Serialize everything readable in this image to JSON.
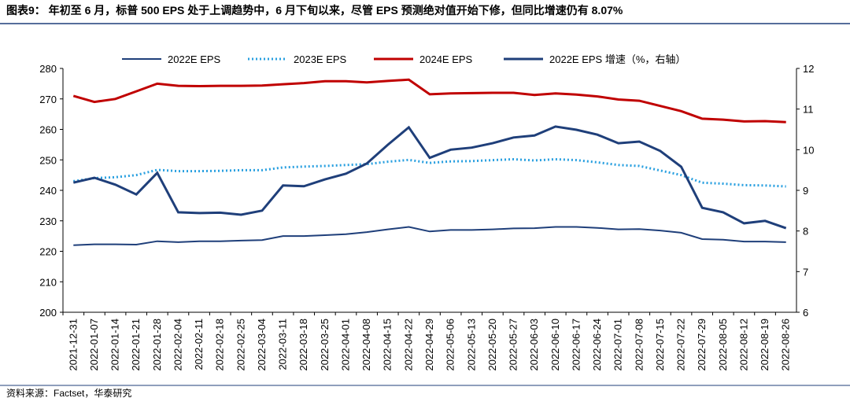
{
  "chart_data": {
    "type": "line",
    "title": "图表9：  年初至 6 月，标普 500 EPS 处于上调趋势中，6 月下旬以来，尽管 EPS 预测绝对值开始下修，但同比增速仍有 8.07%",
    "source": "资料来源：Factset，华泰研究",
    "categories": [
      "2021-12-31",
      "2022-01-07",
      "2022-01-14",
      "2022-01-21",
      "2022-01-28",
      "2022-02-04",
      "2022-02-11",
      "2022-02-18",
      "2022-02-25",
      "2022-03-04",
      "2022-03-11",
      "2022-03-18",
      "2022-03-25",
      "2022-04-01",
      "2022-04-08",
      "2022-04-15",
      "2022-04-22",
      "2022-04-29",
      "2022-05-06",
      "2022-05-13",
      "2022-05-20",
      "2022-05-27",
      "2022-06-03",
      "2022-06-10",
      "2022-06-17",
      "2022-06-24",
      "2022-07-01",
      "2022-07-08",
      "2022-07-15",
      "2022-07-22",
      "2022-07-29",
      "2022-08-05",
      "2022-08-12",
      "2022-08-19",
      "2022-08-26"
    ],
    "ylim": [
      200,
      280
    ],
    "yticks": [
      200,
      210,
      220,
      230,
      240,
      250,
      260,
      270,
      280
    ],
    "y2lim": [
      6,
      12
    ],
    "y2ticks": [
      6,
      7,
      8,
      9,
      10,
      11,
      12
    ],
    "grid": false,
    "series": [
      {
        "name": "2022E EPS",
        "color": "#1f3f7a",
        "line_style": "solid",
        "line_width": 2,
        "values": [
          222,
          222.3,
          222.3,
          222.2,
          223.3,
          223,
          223.3,
          223.3,
          223.5,
          223.7,
          225,
          225,
          225.3,
          225.6,
          226.3,
          227.2,
          228,
          226.5,
          227,
          227,
          227.2,
          227.5,
          227.6,
          228,
          228,
          227.7,
          227.2,
          227.3,
          226.8,
          226.1,
          224,
          223.8,
          223.2,
          223.2,
          223
        ]
      },
      {
        "name": "2023E EPS",
        "color": "#2aa0e0",
        "line_style": "dotted",
        "line_width": 3,
        "values": [
          243,
          244,
          244.3,
          245,
          246.7,
          246.3,
          246.3,
          246.4,
          246.6,
          246.6,
          247.5,
          247.8,
          248,
          248.3,
          248.6,
          249.4,
          250,
          249,
          249.5,
          249.6,
          249.9,
          250.2,
          249.8,
          250.2,
          249.9,
          249.2,
          248.3,
          248,
          246.5,
          245,
          242.5,
          242.2,
          241.7,
          241.6,
          241.3
        ]
      },
      {
        "name": "2024E EPS",
        "color": "#c00000",
        "line_style": "solid",
        "line_width": 3,
        "values": [
          271,
          269,
          270,
          272.5,
          275,
          274.3,
          274.2,
          274.3,
          274.3,
          274.4,
          274.8,
          275.2,
          275.8,
          275.8,
          275.4,
          275.9,
          276.3,
          271.5,
          271.8,
          271.9,
          272,
          272,
          271.3,
          271.8,
          271.4,
          270.8,
          269.8,
          269.4,
          267.7,
          266,
          263.5,
          263.2,
          262.6,
          262.7,
          262.4
        ]
      },
      {
        "name": "2022E EPS 增速（%，右轴）",
        "color": "#1f3f7a",
        "line_style": "solid",
        "line_width": 3,
        "axis": "y2",
        "values": [
          9.19,
          9.31,
          9.14,
          8.9,
          9.43,
          8.46,
          8.44,
          8.45,
          8.4,
          8.5,
          9.12,
          9.1,
          9.27,
          9.41,
          9.66,
          10.12,
          10.55,
          9.8,
          10,
          10.05,
          10.16,
          10.3,
          10.35,
          10.57,
          10.49,
          10.37,
          10.16,
          10.2,
          9.97,
          9.58,
          8.57,
          8.46,
          8.19,
          8.25,
          8.07
        ]
      }
    ]
  }
}
